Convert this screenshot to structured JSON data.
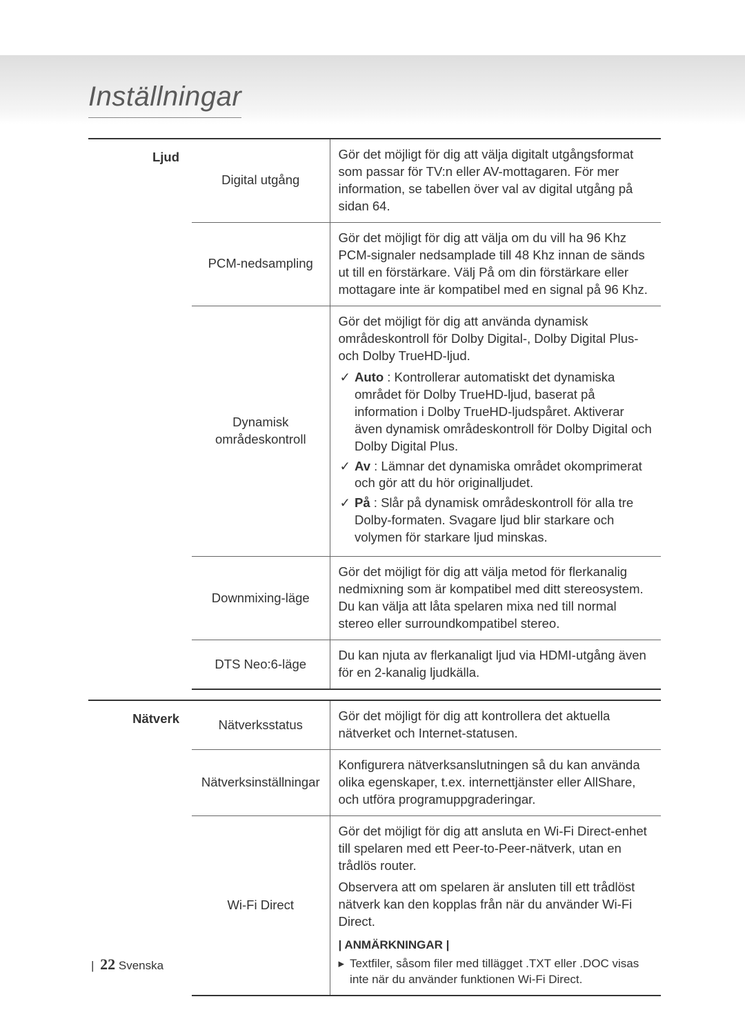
{
  "page_title": "Inställningar",
  "check_mark": "✓",
  "note_header": "| ANMÄRKNINGAR |",
  "note_bullet": "▸",
  "sections": [
    {
      "category": "Ljud",
      "rows": [
        {
          "setting": "Digital utgång",
          "desc_paras": [
            "Gör det möjligt för dig att välja digitalt utgångsformat som passar för TV:n eller AV-mottagaren. För mer information, se tabellen över val av digital utgång på sidan 64."
          ]
        },
        {
          "setting": "PCM-nedsampling",
          "desc_paras": [
            "Gör det möjligt för dig att välja om du vill ha 96 Khz PCM-signaler nedsamplade till 48 Khz innan de sänds ut till en förstärkare. Välj På om din förstärkare eller mottagare inte är kompatibel med en signal på 96 Khz."
          ]
        },
        {
          "setting": "Dynamisk områdeskontroll",
          "desc_paras": [
            "Gör det möjligt för dig att använda dynamisk områdeskontroll för Dolby Digital-, Dolby Digital Plus- och Dolby TrueHD-ljud."
          ],
          "bullets": [
            {
              "bold": "Auto",
              "text": " : Kontrollerar automatiskt det dynamiska området för Dolby TrueHD-ljud, baserat på information i Dolby TrueHD-ljudspåret. Aktiverar även dynamisk områdeskontroll för Dolby Digital och Dolby Digital Plus."
            },
            {
              "bold": "Av",
              "text": " : Lämnar det dynamiska området okomprimerat och gör att du hör originalljudet."
            },
            {
              "bold": "På",
              "text": " : Slår på dynamisk områdeskontroll för alla tre Dolby-formaten. Svagare ljud blir starkare och volymen för starkare ljud minskas."
            }
          ]
        },
        {
          "setting": "Downmixing-läge",
          "desc_paras": [
            "Gör det möjligt för dig att välja metod för flerkanalig nedmixning som är kompatibel med ditt stereosystem. Du kan välja att låta spelaren mixa ned till normal stereo eller surroundkompatibel stereo."
          ]
        },
        {
          "setting": "DTS Neo:6-läge",
          "desc_paras": [
            "Du kan njuta av flerkanaligt ljud via HDMI-utgång även för en 2-kanalig ljudkälla."
          ]
        }
      ]
    },
    {
      "category": "Nätverk",
      "rows": [
        {
          "setting": "Nätverksstatus",
          "desc_paras": [
            "Gör det möjligt för dig att kontrollera det aktuella nätverket och Internet-statusen."
          ]
        },
        {
          "setting": "Nätverksinställningar",
          "desc_paras": [
            "Konfigurera nätverksanslutningen så du kan använda olika egenskaper, t.ex. internettjänster eller AllShare, och utföra programuppgraderingar."
          ]
        },
        {
          "setting": "Wi-Fi Direct",
          "desc_paras": [
            "Gör det möjligt för dig att ansluta en Wi-Fi Direct-enhet till spelaren med ett Peer-to-Peer-nätverk, utan en trådlös router.",
            "Observera att om spelaren är ansluten till ett trådlöst nätverk kan den kopplas från när du använder Wi-Fi Direct."
          ],
          "notes": [
            "Textfiler, såsom filer med tillägget .TXT eller .DOC visas inte när du använder funktionen Wi-Fi Direct."
          ]
        }
      ]
    }
  ],
  "footer": {
    "bar": "|",
    "page": "22",
    "lang": "Svenska"
  }
}
